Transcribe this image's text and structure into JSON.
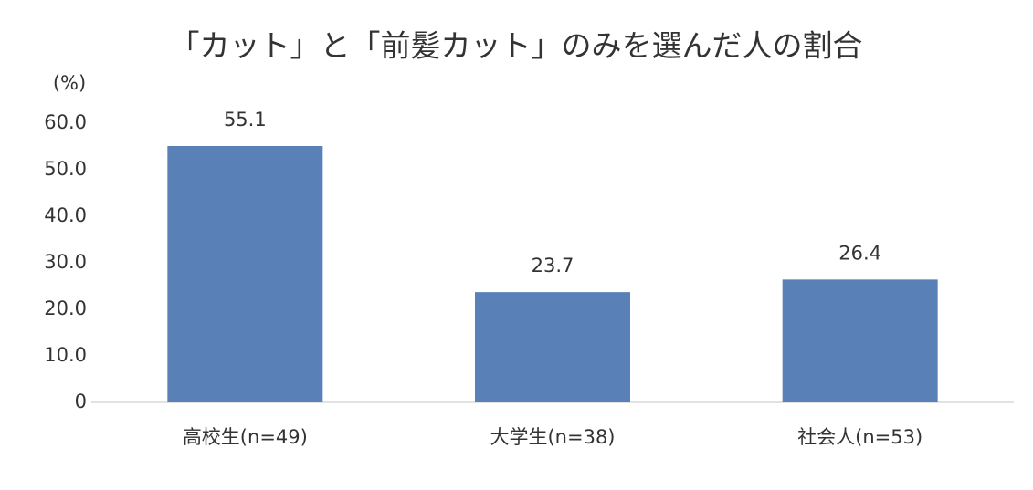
{
  "chart_data": {
    "type": "bar",
    "title": "「カット」と「前髪カット」のみを選んだ人の割合",
    "y_unit": "(%)",
    "categories": [
      "高校生(n=49)",
      "大学生(n=38)",
      "社会人(n=53)"
    ],
    "values": [
      55.1,
      23.7,
      26.4
    ],
    "color": "#5a80b8",
    "ylim": [
      0,
      60
    ],
    "yticks": [
      0,
      {
        "value": 10,
        "label": "10.0"
      },
      {
        "value": 20,
        "label": "20.0"
      },
      {
        "value": 30,
        "label": "30.0"
      },
      {
        "value": 40,
        "label": "40.0"
      },
      {
        "value": 50,
        "label": "50.0"
      },
      {
        "value": 60,
        "label": "60.0"
      }
    ],
    "grid": false
  }
}
